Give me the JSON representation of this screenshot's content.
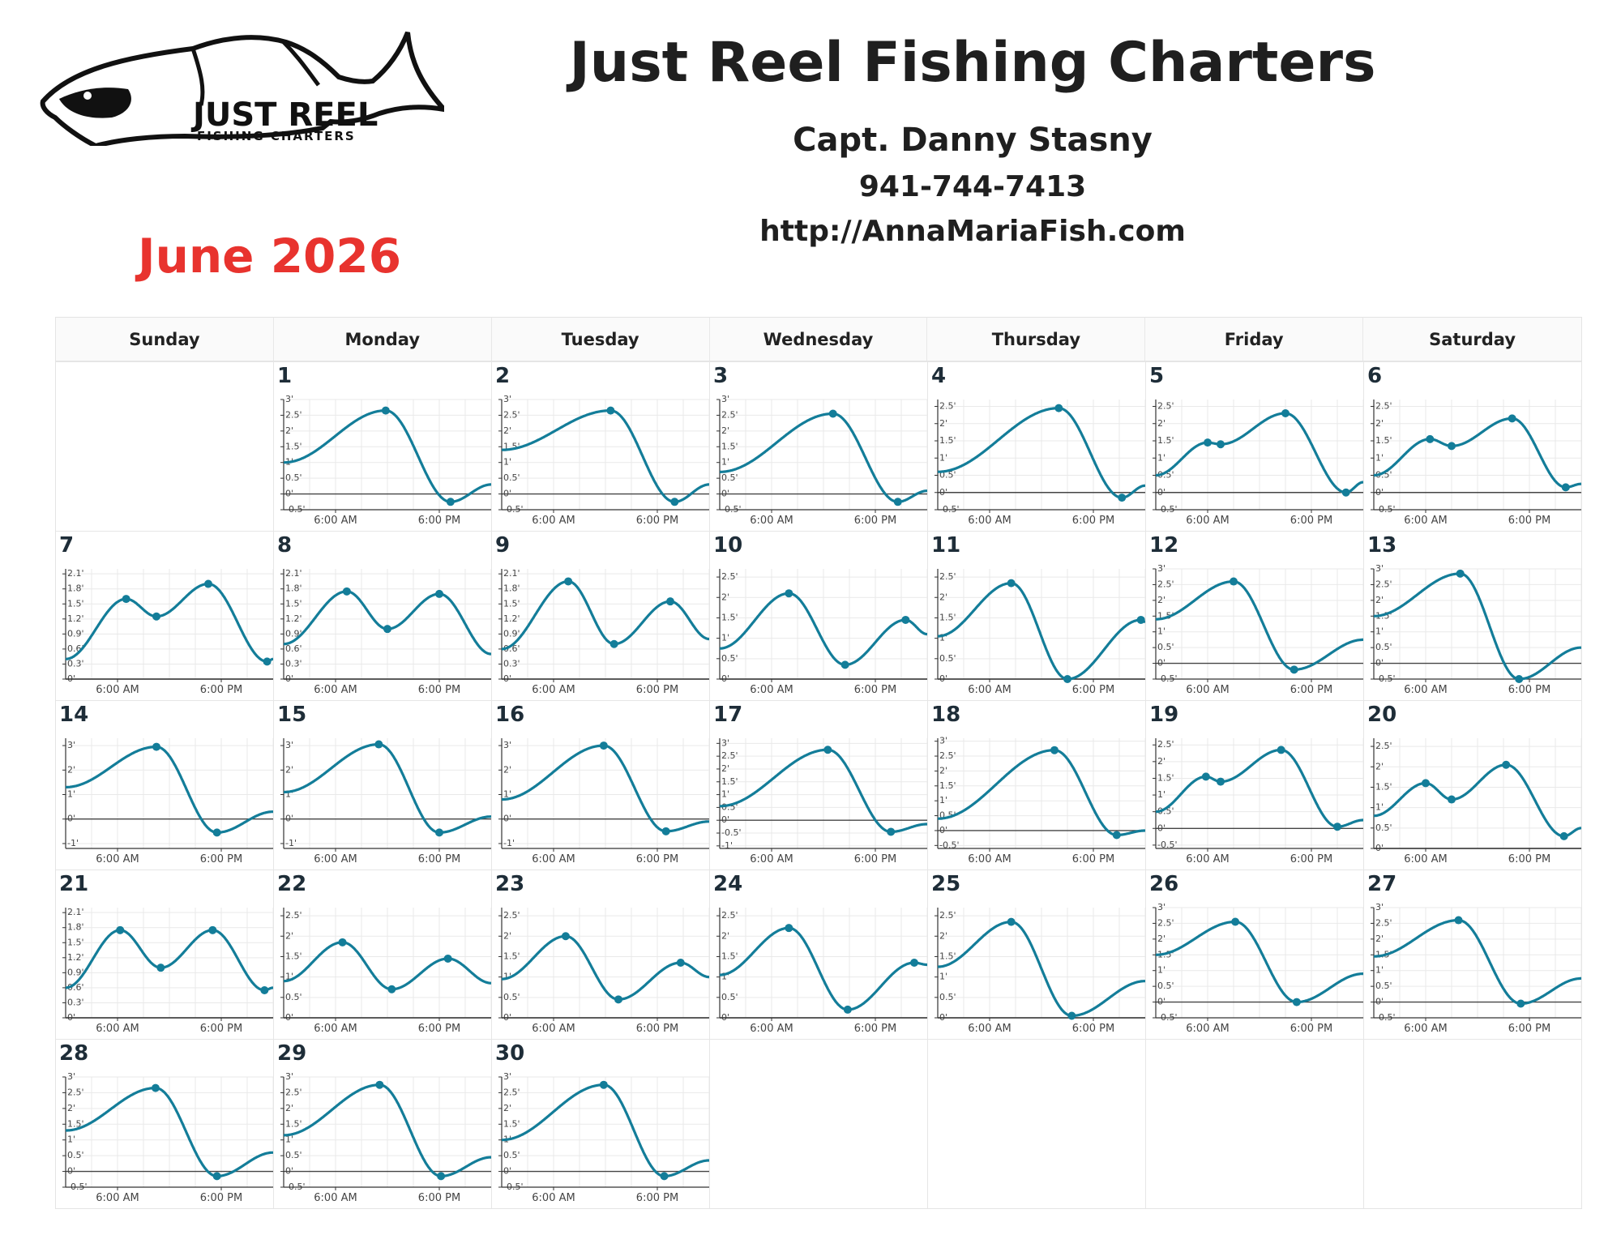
{
  "header": {
    "title": "Just Reel Fishing Charters",
    "captain": "Capt. Danny Stasny",
    "phone": "941-744-7413",
    "website": "http://AnnaMariaFish.com",
    "month": "June 2026",
    "logo_text_main": "JUST REEL",
    "logo_text_sub": "FISHING CHARTERS"
  },
  "colors": {
    "line": "#137d99",
    "month": "#e8332e",
    "grid": "#e9e9e9",
    "axis": "#333333"
  },
  "weekdays": [
    "Sunday",
    "Monday",
    "Tuesday",
    "Wednesday",
    "Thursday",
    "Friday",
    "Saturday"
  ],
  "first_weekday_index": 1,
  "chart_data": {
    "type": "line",
    "title": "June 2026",
    "xlabel": "",
    "ylabel": "",
    "x_ticks": [
      "6:00 AM",
      "6:00 PM"
    ],
    "x_range_hours": [
      0,
      24
    ],
    "units": "ft",
    "days": [
      {
        "day": 1,
        "yticks": [
          "-0.5'",
          "0'",
          "0.5'",
          "1'",
          "1.5'",
          "2'",
          "2.5'",
          "3'"
        ],
        "ylim": [
          -0.5,
          3
        ],
        "points": [
          [
            0,
            1.0
          ],
          [
            11.8,
            2.65
          ],
          [
            19.3,
            -0.25
          ],
          [
            24,
            0.3
          ]
        ]
      },
      {
        "day": 2,
        "yticks": [
          "-0.5'",
          "0'",
          "0.5'",
          "1'",
          "1.5'",
          "2'",
          "2.5'",
          "3'"
        ],
        "ylim": [
          -0.5,
          3
        ],
        "points": [
          [
            0,
            1.4
          ],
          [
            12.6,
            2.65
          ],
          [
            20.0,
            -0.25
          ],
          [
            24,
            0.3
          ]
        ]
      },
      {
        "day": 3,
        "yticks": [
          "-0.5'",
          "0'",
          "0.5'",
          "1'",
          "1.5'",
          "2'",
          "2.5'",
          "3'"
        ],
        "ylim": [
          -0.5,
          3
        ],
        "points": [
          [
            0,
            0.7
          ],
          [
            13.1,
            2.55
          ],
          [
            20.6,
            -0.25
          ],
          [
            24,
            0.1
          ]
        ]
      },
      {
        "day": 4,
        "yticks": [
          "-0.5'",
          "0'",
          "0.5'",
          "1'",
          "1.5'",
          "2'",
          "2.5'"
        ],
        "ylim": [
          -0.5,
          2.7
        ],
        "points": [
          [
            0,
            0.6
          ],
          [
            14.0,
            2.45
          ],
          [
            21.3,
            -0.15
          ],
          [
            24,
            0.2
          ]
        ]
      },
      {
        "day": 5,
        "yticks": [
          "-0.5'",
          "0'",
          "0.5'",
          "1'",
          "1.5'",
          "2'",
          "2.5'"
        ],
        "ylim": [
          -0.5,
          2.7
        ],
        "points": [
          [
            0,
            0.5
          ],
          [
            6.0,
            1.45
          ],
          [
            7.5,
            1.4
          ],
          [
            15.0,
            2.3
          ],
          [
            22.0,
            0.0
          ],
          [
            24,
            0.3
          ]
        ]
      },
      {
        "day": 6,
        "yticks": [
          "-0.5'",
          "0'",
          "0.5'",
          "1'",
          "1.5'",
          "2'",
          "2.5'"
        ],
        "ylim": [
          -0.5,
          2.7
        ],
        "points": [
          [
            0,
            0.5
          ],
          [
            6.5,
            1.55
          ],
          [
            9.0,
            1.35
          ],
          [
            16.0,
            2.15
          ],
          [
            22.2,
            0.15
          ],
          [
            24,
            0.25
          ]
        ]
      },
      {
        "day": 7,
        "yticks": [
          "0'",
          "0.3'",
          "0.6'",
          "0.9'",
          "1.2'",
          "1.5'",
          "1.8'",
          "2.1'"
        ],
        "ylim": [
          0,
          2.2
        ],
        "points": [
          [
            0,
            0.4
          ],
          [
            7.0,
            1.6
          ],
          [
            10.5,
            1.25
          ],
          [
            16.5,
            1.9
          ],
          [
            23.3,
            0.35
          ],
          [
            24,
            0.4
          ]
        ]
      },
      {
        "day": 8,
        "yticks": [
          "0'",
          "0.3'",
          "0.6'",
          "0.9'",
          "1.2'",
          "1.5'",
          "1.8'",
          "2.1'"
        ],
        "ylim": [
          0,
          2.2
        ],
        "points": [
          [
            0,
            0.7
          ],
          [
            7.3,
            1.75
          ],
          [
            12.0,
            1.0
          ],
          [
            18.0,
            1.7
          ],
          [
            24,
            0.5
          ]
        ]
      },
      {
        "day": 9,
        "yticks": [
          "0'",
          "0.3'",
          "0.6'",
          "0.9'",
          "1.2'",
          "1.5'",
          "1.8'",
          "2.1'"
        ],
        "ylim": [
          0,
          2.2
        ],
        "points": [
          [
            0,
            0.6
          ],
          [
            7.7,
            1.95
          ],
          [
            13.0,
            0.7
          ],
          [
            19.5,
            1.55
          ],
          [
            24,
            0.8
          ]
        ]
      },
      {
        "day": 10,
        "yticks": [
          "0'",
          "0.5'",
          "1'",
          "1.5'",
          "2'",
          "2.5'"
        ],
        "ylim": [
          0,
          2.7
        ],
        "points": [
          [
            0,
            0.75
          ],
          [
            8.0,
            2.1
          ],
          [
            14.5,
            0.35
          ],
          [
            21.5,
            1.45
          ],
          [
            24,
            1.1
          ]
        ]
      },
      {
        "day": 11,
        "yticks": [
          "0'",
          "0.5'",
          "1'",
          "1.5'",
          "2'",
          "2.5'"
        ],
        "ylim": [
          0,
          2.7
        ],
        "points": [
          [
            0,
            1.05
          ],
          [
            8.5,
            2.35
          ],
          [
            15.0,
            0.0
          ],
          [
            23.5,
            1.45
          ],
          [
            24,
            1.4
          ]
        ]
      },
      {
        "day": 12,
        "yticks": [
          "-0.5'",
          "0'",
          "0.5'",
          "1'",
          "1.5'",
          "2'",
          "2.5'",
          "3'"
        ],
        "ylim": [
          -0.5,
          3
        ],
        "points": [
          [
            0,
            1.4
          ],
          [
            9.0,
            2.6
          ],
          [
            16.0,
            -0.2
          ],
          [
            24,
            0.75
          ]
        ]
      },
      {
        "day": 13,
        "yticks": [
          "-0.5'",
          "0'",
          "0.5'",
          "1'",
          "1.5'",
          "2'",
          "2.5'",
          "3'"
        ],
        "ylim": [
          -0.5,
          3
        ],
        "points": [
          [
            0,
            1.5
          ],
          [
            10.0,
            2.85
          ],
          [
            16.8,
            -0.5
          ],
          [
            24,
            0.5
          ]
        ]
      },
      {
        "day": 14,
        "yticks": [
          "-1'",
          "0'",
          "1'",
          "2'",
          "3'"
        ],
        "ylim": [
          -1.2,
          3.3
        ],
        "points": [
          [
            0,
            1.3
          ],
          [
            10.5,
            2.95
          ],
          [
            17.5,
            -0.55
          ],
          [
            24,
            0.3
          ]
        ]
      },
      {
        "day": 15,
        "yticks": [
          "-1'",
          "0'",
          "1'",
          "2'",
          "3'"
        ],
        "ylim": [
          -1.2,
          3.3
        ],
        "points": [
          [
            0,
            1.1
          ],
          [
            11.0,
            3.05
          ],
          [
            18.0,
            -0.55
          ],
          [
            24,
            0.1
          ]
        ]
      },
      {
        "day": 16,
        "yticks": [
          "-1'",
          "0'",
          "1'",
          "2'",
          "3'"
        ],
        "ylim": [
          -1.2,
          3.3
        ],
        "points": [
          [
            0,
            0.8
          ],
          [
            11.8,
            3.0
          ],
          [
            19.0,
            -0.5
          ],
          [
            24,
            -0.1
          ]
        ]
      },
      {
        "day": 17,
        "yticks": [
          "-1'",
          "-0.5'",
          "0'",
          "0.5'",
          "1'",
          "1.5'",
          "2'",
          "2.5'",
          "3'"
        ],
        "ylim": [
          -1.1,
          3.2
        ],
        "points": [
          [
            0,
            0.55
          ],
          [
            12.5,
            2.75
          ],
          [
            19.8,
            -0.45
          ],
          [
            24,
            -0.15
          ]
        ]
      },
      {
        "day": 18,
        "yticks": [
          "-0.5'",
          "0'",
          "0.5'",
          "1'",
          "1.5'",
          "2'",
          "2.5'",
          "3'"
        ],
        "ylim": [
          -0.6,
          3.1
        ],
        "points": [
          [
            0,
            0.4
          ],
          [
            13.5,
            2.7
          ],
          [
            20.7,
            -0.15
          ],
          [
            24,
            0.0
          ]
        ]
      },
      {
        "day": 19,
        "yticks": [
          "-0.5'",
          "0'",
          "0.5'",
          "1'",
          "1.5'",
          "2'",
          "2.5'"
        ],
        "ylim": [
          -0.6,
          2.7
        ],
        "points": [
          [
            0,
            0.5
          ],
          [
            5.8,
            1.55
          ],
          [
            7.5,
            1.4
          ],
          [
            14.5,
            2.35
          ],
          [
            21.0,
            0.05
          ],
          [
            24,
            0.25
          ]
        ]
      },
      {
        "day": 20,
        "yticks": [
          "0'",
          "0.5'",
          "1'",
          "1.5'",
          "2'",
          "2.5'"
        ],
        "ylim": [
          0,
          2.7
        ],
        "points": [
          [
            0,
            0.8
          ],
          [
            6.0,
            1.6
          ],
          [
            9.0,
            1.2
          ],
          [
            15.3,
            2.05
          ],
          [
            22.0,
            0.3
          ],
          [
            24,
            0.5
          ]
        ]
      },
      {
        "day": 21,
        "yticks": [
          "0'",
          "0.3'",
          "0.6'",
          "0.9'",
          "1.2'",
          "1.5'",
          "1.8'",
          "2.1'"
        ],
        "ylim": [
          0,
          2.2
        ],
        "points": [
          [
            0,
            0.6
          ],
          [
            6.3,
            1.75
          ],
          [
            11.0,
            1.0
          ],
          [
            17.0,
            1.75
          ],
          [
            23.0,
            0.55
          ],
          [
            24,
            0.6
          ]
        ]
      },
      {
        "day": 22,
        "yticks": [
          "0'",
          "0.5'",
          "1'",
          "1.5'",
          "2'",
          "2.5'"
        ],
        "ylim": [
          0,
          2.7
        ],
        "points": [
          [
            0,
            0.9
          ],
          [
            6.8,
            1.85
          ],
          [
            12.5,
            0.7
          ],
          [
            19.0,
            1.45
          ],
          [
            24,
            0.85
          ]
        ]
      },
      {
        "day": 23,
        "yticks": [
          "0'",
          "0.5'",
          "1'",
          "1.5'",
          "2'",
          "2.5'"
        ],
        "ylim": [
          0,
          2.7
        ],
        "points": [
          [
            0,
            0.95
          ],
          [
            7.4,
            2.0
          ],
          [
            13.5,
            0.45
          ],
          [
            20.7,
            1.35
          ],
          [
            24,
            1.0
          ]
        ]
      },
      {
        "day": 24,
        "yticks": [
          "0'",
          "0.5'",
          "1'",
          "1.5'",
          "2'",
          "2.5'"
        ],
        "ylim": [
          0,
          2.7
        ],
        "points": [
          [
            0,
            1.05
          ],
          [
            8.0,
            2.2
          ],
          [
            14.8,
            0.2
          ],
          [
            22.5,
            1.35
          ],
          [
            24,
            1.3
          ]
        ]
      },
      {
        "day": 25,
        "yticks": [
          "0'",
          "0.5'",
          "1'",
          "1.5'",
          "2'",
          "2.5'"
        ],
        "ylim": [
          0,
          2.7
        ],
        "points": [
          [
            0,
            1.25
          ],
          [
            8.5,
            2.35
          ],
          [
            15.5,
            0.05
          ],
          [
            24,
            0.9
          ]
        ]
      },
      {
        "day": 26,
        "yticks": [
          "-0.5'",
          "0'",
          "0.5'",
          "1'",
          "1.5'",
          "2'",
          "2.5'",
          "3'"
        ],
        "ylim": [
          -0.5,
          3
        ],
        "points": [
          [
            0,
            1.5
          ],
          [
            9.2,
            2.55
          ],
          [
            16.3,
            0.0
          ],
          [
            24,
            0.9
          ]
        ]
      },
      {
        "day": 27,
        "yticks": [
          "-0.5'",
          "0'",
          "0.5'",
          "1'",
          "1.5'",
          "2'",
          "2.5'",
          "3'"
        ],
        "ylim": [
          -0.5,
          3
        ],
        "points": [
          [
            0,
            1.45
          ],
          [
            9.8,
            2.6
          ],
          [
            17.0,
            -0.05
          ],
          [
            24,
            0.75
          ]
        ]
      },
      {
        "day": 28,
        "yticks": [
          "-0.5'",
          "0'",
          "0.5'",
          "1'",
          "1.5'",
          "2'",
          "2.5'",
          "3'"
        ],
        "ylim": [
          -0.5,
          3
        ],
        "points": [
          [
            0,
            1.3
          ],
          [
            10.4,
            2.65
          ],
          [
            17.5,
            -0.15
          ],
          [
            24,
            0.6
          ]
        ]
      },
      {
        "day": 29,
        "yticks": [
          "-0.5'",
          "0'",
          "0.5'",
          "1'",
          "1.5'",
          "2'",
          "2.5'",
          "3'"
        ],
        "ylim": [
          -0.5,
          3
        ],
        "points": [
          [
            0,
            1.15
          ],
          [
            11.1,
            2.75
          ],
          [
            18.2,
            -0.15
          ],
          [
            24,
            0.45
          ]
        ]
      },
      {
        "day": 30,
        "yticks": [
          "-0.5'",
          "0'",
          "0.5'",
          "1'",
          "1.5'",
          "2'",
          "2.5'",
          "3'"
        ],
        "ylim": [
          -0.5,
          3
        ],
        "points": [
          [
            0,
            1.0
          ],
          [
            11.8,
            2.75
          ],
          [
            18.8,
            -0.15
          ],
          [
            24,
            0.35
          ]
        ]
      }
    ]
  }
}
